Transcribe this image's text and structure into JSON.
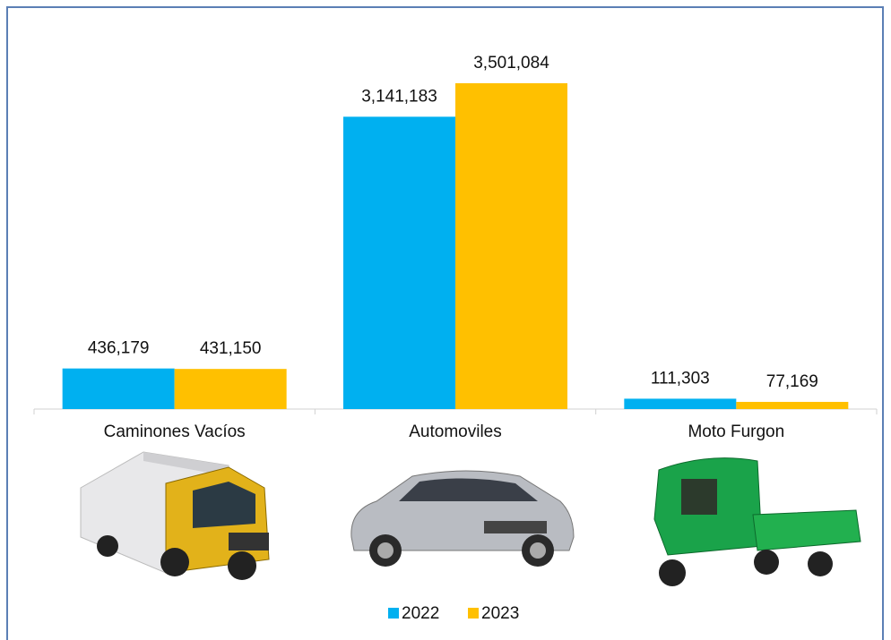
{
  "chart_data": {
    "type": "bar",
    "categories": [
      "Caminones Vacíos",
      "Automoviles",
      "Moto Furgon"
    ],
    "series": [
      {
        "name": "2022",
        "color": "#00b0f0",
        "values": [
          436179,
          3141183,
          111303
        ],
        "value_labels": [
          "436,179",
          "3,141,183",
          "111,303"
        ]
      },
      {
        "name": "2023",
        "color": "#ffc000",
        "values": [
          431150,
          3501084,
          77169
        ],
        "value_labels": [
          "431,150",
          "3,501,084",
          "77,169"
        ]
      }
    ]
  }
}
